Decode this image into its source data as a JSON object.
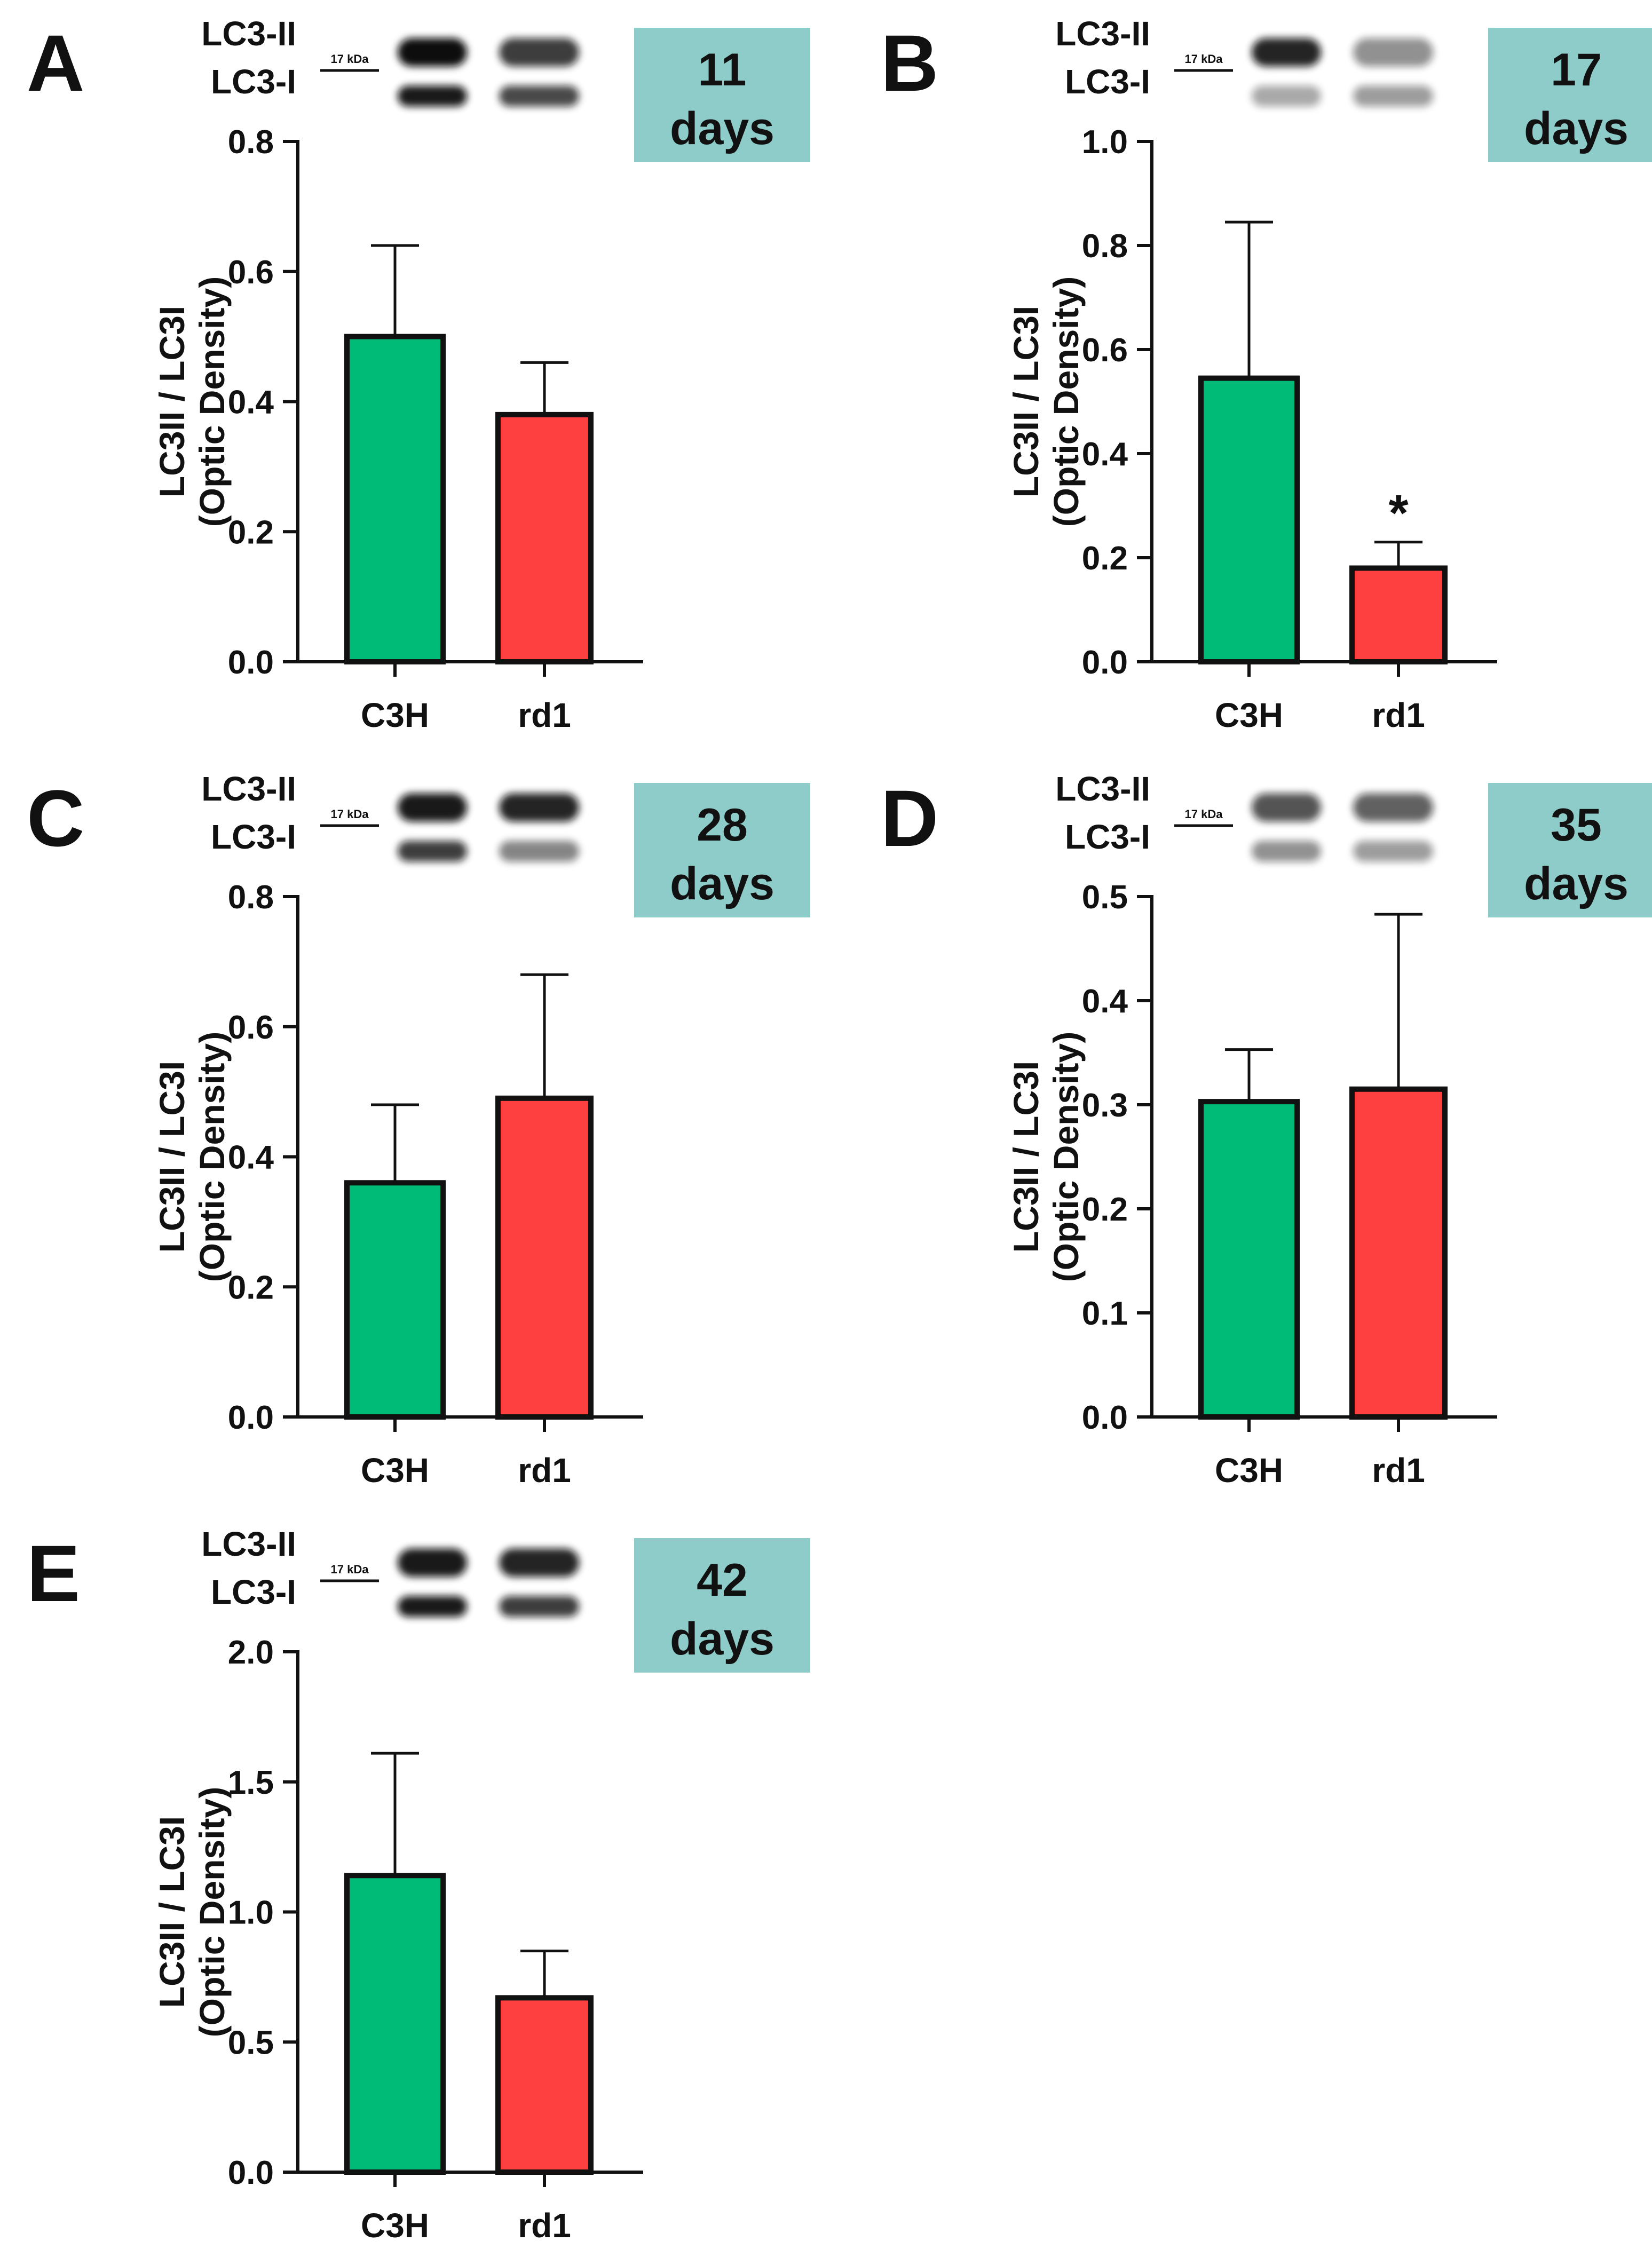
{
  "colors": {
    "c3h": "#00BB78",
    "rd1": "#FF4040",
    "badge": "#8ECCCA",
    "ink": "#111111",
    "blot_bg": "#ffffff"
  },
  "blot": {
    "band_upper": "LC3-II",
    "band_lower": "LC3-I",
    "marker": "17 kDa"
  },
  "chart_data": [
    {
      "panel": "A",
      "type": "bar",
      "badge_number": "11",
      "badge_unit": "days",
      "categories": [
        "C3H",
        "rd1"
      ],
      "values": [
        0.5,
        0.38
      ],
      "errors": [
        0.14,
        0.08
      ],
      "ylabel_line1": "LC3II / LC3I",
      "ylabel_line2": "(Optic Density)",
      "ylim": [
        0,
        0.8
      ],
      "yticks": [
        "0.0",
        "0.2",
        "0.4",
        "0.6",
        "0.8"
      ],
      "blot_intensity": {
        "upper": [
          1.0,
          0.8
        ],
        "lower": [
          0.95,
          0.75
        ]
      },
      "significance": [
        "",
        ""
      ]
    },
    {
      "panel": "B",
      "type": "bar",
      "badge_number": "17",
      "badge_unit": "days",
      "categories": [
        "C3H",
        "rd1"
      ],
      "values": [
        0.545,
        0.18
      ],
      "errors": [
        0.3,
        0.05
      ],
      "ylabel_line1": "LC3II / LC3I",
      "ylabel_line2": "(Optic Density)",
      "ylim": [
        0,
        1.0
      ],
      "yticks": [
        "0.0",
        "0.2",
        "0.4",
        "0.6",
        "0.8",
        "1.0"
      ],
      "blot_intensity": {
        "upper": [
          0.9,
          0.45
        ],
        "lower": [
          0.35,
          0.4
        ]
      },
      "significance": [
        "",
        "*"
      ]
    },
    {
      "panel": "C",
      "type": "bar",
      "badge_number": "28",
      "badge_unit": "days",
      "categories": [
        "C3H",
        "rd1"
      ],
      "values": [
        0.36,
        0.49
      ],
      "errors": [
        0.12,
        0.19
      ],
      "ylabel_line1": "LC3II / LC3I",
      "ylabel_line2": "(Optic Density)",
      "ylim": [
        0,
        0.8
      ],
      "yticks": [
        "0.0",
        "0.2",
        "0.4",
        "0.6",
        "0.8"
      ],
      "blot_intensity": {
        "upper": [
          0.95,
          0.9
        ],
        "lower": [
          0.8,
          0.5
        ]
      },
      "significance": [
        "",
        ""
      ]
    },
    {
      "panel": "D",
      "type": "bar",
      "badge_number": "35",
      "badge_unit": "days",
      "categories": [
        "C3H",
        "rd1"
      ],
      "values": [
        0.303,
        0.315
      ],
      "errors": [
        0.05,
        0.168
      ],
      "ylabel_line1": "LC3II / LC3I",
      "ylabel_line2": "(Optic Density)",
      "ylim": [
        0,
        0.5
      ],
      "yticks": [
        "0.0",
        "0.1",
        "0.2",
        "0.3",
        "0.4",
        "0.5"
      ],
      "blot_intensity": {
        "upper": [
          0.7,
          0.65
        ],
        "lower": [
          0.45,
          0.4
        ]
      },
      "significance": [
        "",
        ""
      ]
    },
    {
      "panel": "E",
      "type": "bar",
      "badge_number": "42",
      "badge_unit": "days",
      "categories": [
        "C3H",
        "rd1"
      ],
      "values": [
        1.14,
        0.67
      ],
      "errors": [
        0.47,
        0.18
      ],
      "ylabel_line1": "LC3II / LC3I",
      "ylabel_line2": "(Optic Density)",
      "ylim": [
        0,
        2.0
      ],
      "yticks": [
        "0.0",
        "0.5",
        "1.0",
        "1.5",
        "2.0"
      ],
      "blot_intensity": {
        "upper": [
          0.95,
          0.9
        ],
        "lower": [
          0.95,
          0.8
        ]
      },
      "significance": [
        "",
        ""
      ]
    }
  ]
}
